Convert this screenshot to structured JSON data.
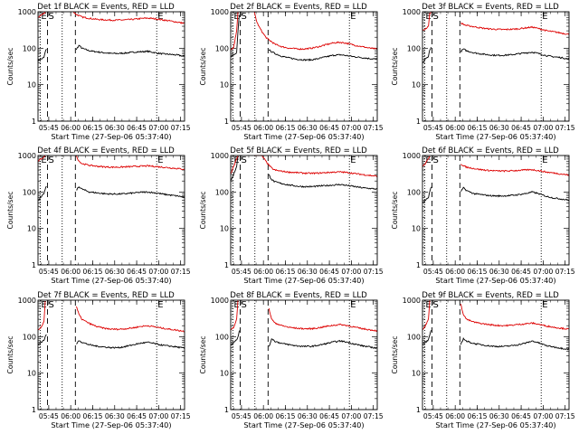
{
  "chart_data": {
    "type": "line",
    "shared": {
      "ylabel": "Counts/sec",
      "xlabel": "Start Time (27-Sep-06 05:37:40)",
      "yscale": "log",
      "ylim": [
        1,
        1000
      ],
      "y_ticks": [
        1,
        10,
        100,
        1000
      ],
      "y_tick_labels": [
        "1",
        "10",
        "100",
        "1000"
      ],
      "x_range_min": [
        0,
        100
      ],
      "x_ticks_min": [
        7.33,
        22.33,
        37.33,
        52.33,
        67.33,
        82.33,
        97.33
      ],
      "x_tick_labels": [
        "05:45",
        "06:00",
        "06:15",
        "06:30",
        "06:45",
        "07:00",
        "07:15"
      ],
      "series_names": [
        "Events",
        "LLD"
      ],
      "series_colors": [
        "#000000",
        "#dd0000"
      ],
      "markers": [
        {
          "label": "E",
          "x": 1.5,
          "style": "dotted"
        },
        {
          "label": "S",
          "x": 6.5,
          "style": "dashed"
        },
        {
          "label": "",
          "x": 16.5,
          "style": "dotted"
        },
        {
          "label": "",
          "x": 25.5,
          "style": "dashed"
        },
        {
          "label": "E",
          "x": 81.0,
          "style": "dotted"
        }
      ],
      "x": [
        0,
        2,
        4,
        5,
        6,
        7,
        8,
        10,
        12,
        14,
        16,
        18,
        20,
        22,
        24,
        26,
        28,
        30,
        35,
        40,
        45,
        50,
        55,
        60,
        65,
        70,
        75,
        80,
        85,
        90,
        95,
        100
      ]
    },
    "panels": [
      {
        "title": "Det 1f BLACK = Events, RED = LLD",
        "series": [
          {
            "name": "Events",
            "values": [
              45,
              50,
              55,
              80,
              100,
              null,
              null,
              null,
              null,
              null,
              null,
              null,
              null,
              null,
              null,
              90,
              120,
              100,
              85,
              80,
              75,
              72,
              72,
              74,
              78,
              80,
              82,
              75,
              70,
              68,
              65,
              60
            ]
          },
          {
            "name": "LLD",
            "values": [
              700,
              800,
              900,
              1000,
              null,
              null,
              null,
              null,
              null,
              null,
              null,
              null,
              null,
              null,
              1000,
              850,
              780,
              720,
              660,
              620,
              600,
              590,
              590,
              600,
              620,
              650,
              670,
              640,
              600,
              560,
              520,
              480
            ]
          }
        ]
      },
      {
        "title": "Det 2f BLACK = Events, RED = LLD",
        "series": [
          {
            "name": "Events",
            "values": [
              60,
              65,
              70,
              300,
              1000,
              null,
              null,
              null,
              null,
              null,
              null,
              null,
              null,
              null,
              null,
              90,
              80,
              72,
              60,
              54,
              50,
              48,
              48,
              52,
              58,
              64,
              66,
              62,
              58,
              55,
              52,
              50
            ]
          },
          {
            "name": "LLD",
            "values": [
              90,
              100,
              300,
              1000,
              null,
              null,
              null,
              null,
              null,
              null,
              1000,
              500,
              350,
              260,
              200,
              170,
              150,
              130,
              110,
              100,
              96,
              95,
              100,
              110,
              125,
              140,
              145,
              135,
              120,
              110,
              100,
              95
            ]
          }
        ]
      },
      {
        "title": "Det 3f BLACK = Events, RED = LLD",
        "series": [
          {
            "name": "Events",
            "values": [
              40,
              50,
              60,
              90,
              110,
              null,
              null,
              null,
              null,
              null,
              null,
              null,
              null,
              null,
              null,
              80,
              95,
              85,
              75,
              70,
              66,
              64,
              64,
              66,
              70,
              74,
              78,
              70,
              62,
              58,
              55,
              50
            ]
          },
          {
            "name": "LLD",
            "values": [
              300,
              340,
              400,
              900,
              1000,
              null,
              null,
              null,
              null,
              null,
              null,
              null,
              null,
              null,
              null,
              500,
              450,
              420,
              390,
              360,
              340,
              330,
              325,
              330,
              340,
              360,
              380,
              340,
              300,
              280,
              260,
              240
            ]
          }
        ]
      },
      {
        "title": "Det 4f BLACK = Events, RED = LLD",
        "series": [
          {
            "name": "Events",
            "values": [
              60,
              70,
              90,
              120,
              150,
              null,
              null,
              null,
              null,
              null,
              null,
              null,
              null,
              null,
              null,
              110,
              140,
              120,
              100,
              95,
              90,
              88,
              88,
              90,
              94,
              98,
              100,
              95,
              88,
              82,
              78,
              72
            ]
          },
          {
            "name": "LLD",
            "values": [
              700,
              800,
              900,
              1000,
              null,
              null,
              null,
              null,
              null,
              null,
              null,
              null,
              null,
              null,
              null,
              1000,
              700,
              600,
              540,
              510,
              490,
              480,
              480,
              490,
              500,
              510,
              520,
              500,
              480,
              460,
              440,
              420
            ]
          }
        ]
      },
      {
        "title": "Det 5f BLACK = Events, RED = LLD",
        "series": [
          {
            "name": "Events",
            "values": [
              200,
              300,
              500,
              1000,
              null,
              null,
              null,
              null,
              null,
              null,
              null,
              null,
              null,
              null,
              null,
              300,
              220,
              190,
              170,
              155,
              145,
              140,
              140,
              145,
              150,
              155,
              160,
              150,
              140,
              130,
              125,
              120
            ]
          },
          {
            "name": "LLD",
            "values": [
              300,
              500,
              800,
              1000,
              null,
              null,
              null,
              null,
              null,
              null,
              1000,
              2000,
              1200,
              900,
              700,
              550,
              450,
              400,
              370,
              350,
              340,
              330,
              325,
              330,
              340,
              350,
              355,
              340,
              320,
              300,
              285,
              270
            ]
          }
        ]
      },
      {
        "title": "Det 6f BLACK = Events, RED = LLD",
        "series": [
          {
            "name": "Events",
            "values": [
              50,
              60,
              70,
              100,
              150,
              null,
              null,
              null,
              null,
              null,
              null,
              null,
              null,
              null,
              null,
              100,
              130,
              110,
              90,
              85,
              80,
              78,
              78,
              80,
              84,
              90,
              100,
              88,
              75,
              68,
              64,
              60
            ]
          },
          {
            "name": "LLD",
            "values": [
              500,
              600,
              800,
              1000,
              null,
              null,
              null,
              null,
              null,
              null,
              null,
              null,
              null,
              null,
              null,
              600,
              520,
              480,
              440,
              410,
              390,
              380,
              375,
              380,
              390,
              400,
              410,
              380,
              350,
              330,
              310,
              290
            ]
          }
        ]
      },
      {
        "title": "Det 7f BLACK = Events, RED = LLD",
        "series": [
          {
            "name": "Events",
            "values": [
              60,
              70,
              80,
              100,
              120,
              null,
              null,
              null,
              null,
              null,
              null,
              null,
              null,
              null,
              null,
              60,
              80,
              70,
              60,
              55,
              52,
              50,
              50,
              54,
              60,
              66,
              70,
              64,
              58,
              55,
              52,
              48
            ]
          },
          {
            "name": "LLD",
            "values": [
              150,
              180,
              250,
              1000,
              null,
              null,
              null,
              null,
              null,
              null,
              null,
              null,
              null,
              null,
              null,
              700,
              400,
              300,
              230,
              190,
              170,
              160,
              160,
              165,
              175,
              190,
              200,
              185,
              170,
              160,
              150,
              140
            ]
          }
        ]
      },
      {
        "title": "Det 8f BLACK = Events, RED = LLD",
        "series": [
          {
            "name": "Events",
            "values": [
              60,
              70,
              80,
              100,
              150,
              null,
              null,
              null,
              null,
              null,
              null,
              null,
              null,
              null,
              null,
              50,
              90,
              75,
              65,
              60,
              56,
              54,
              54,
              58,
              64,
              72,
              76,
              70,
              62,
              56,
              52,
              48
            ]
          },
          {
            "name": "LLD",
            "values": [
              150,
              180,
              300,
              1000,
              null,
              null,
              null,
              null,
              null,
              null,
              null,
              null,
              null,
              null,
              null,
              600,
              300,
              240,
              200,
              180,
              170,
              165,
              165,
              175,
              190,
              205,
              215,
              200,
              180,
              165,
              155,
              145
            ]
          }
        ]
      },
      {
        "title": "Det 9f BLACK = Events, RED = LLD",
        "series": [
          {
            "name": "Events",
            "values": [
              60,
              70,
              80,
              110,
              150,
              null,
              null,
              null,
              null,
              null,
              null,
              null,
              null,
              null,
              null,
              60,
              90,
              75,
              65,
              60,
              56,
              54,
              54,
              56,
              60,
              66,
              76,
              66,
              56,
              52,
              48,
              45
            ]
          },
          {
            "name": "LLD",
            "values": [
              150,
              200,
              300,
              1000,
              null,
              null,
              null,
              null,
              null,
              null,
              null,
              null,
              null,
              null,
              null,
              800,
              400,
              300,
              250,
              230,
              215,
              205,
              200,
              205,
              215,
              225,
              235,
              215,
              195,
              180,
              170,
              160
            ]
          }
        ]
      }
    ]
  }
}
